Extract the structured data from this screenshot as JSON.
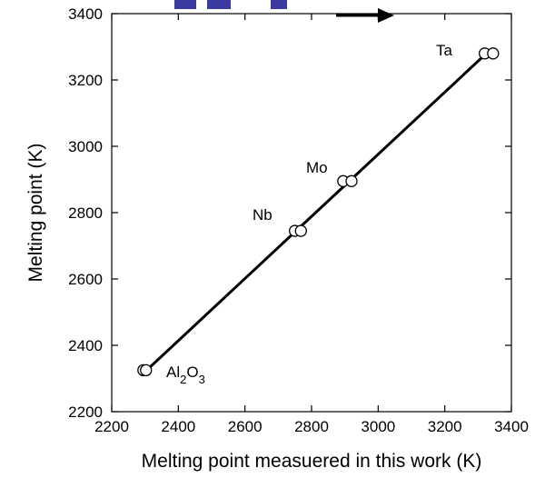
{
  "chart_data": {
    "type": "scatter",
    "xlabel": "Melting point  measuered in this work (K)",
    "ylabel": "Melting point (K)",
    "xlim": [
      2200,
      3400
    ],
    "ylim": [
      2200,
      3400
    ],
    "x_ticks": [
      2200,
      2400,
      2600,
      2800,
      3000,
      3200,
      3400
    ],
    "y_ticks": [
      2200,
      2400,
      2600,
      2800,
      3000,
      3200,
      3400
    ],
    "grid": false,
    "series": [
      {
        "points": [
          {
            "x": 2295,
            "y": 2325
          },
          {
            "x": 2303,
            "y": 2325
          },
          {
            "x": 2750,
            "y": 2745
          },
          {
            "x": 2768,
            "y": 2745
          },
          {
            "x": 2895,
            "y": 2895
          },
          {
            "x": 2920,
            "y": 2895
          },
          {
            "x": 3320,
            "y": 3280
          },
          {
            "x": 3345,
            "y": 3280
          }
        ]
      }
    ],
    "fit_line": {
      "x": [
        2305,
        3330
      ],
      "y": [
        2325,
        3285
      ]
    },
    "annotations": [
      {
        "text": "Ta"
      },
      {
        "text": "Mo"
      },
      {
        "text": "Nb"
      },
      {
        "text": "Al",
        "sub1": "2",
        "main2": "O",
        "sub2": "3"
      }
    ],
    "colors": {
      "marker": "#000000",
      "line": "#000000",
      "title_accent": "#3c3ca0",
      "arrow": "#000000"
    }
  }
}
